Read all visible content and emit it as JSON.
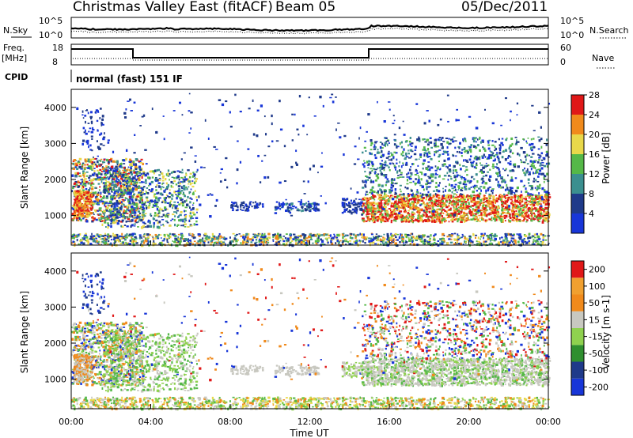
{
  "header": {
    "title": "Christmas Valley East (fitACF)",
    "beam": "Beam 05",
    "date": "05/Dec/2011"
  },
  "top_panel": {
    "nsky_label": "N.Sky",
    "nsearch_label": "N.Search",
    "y_ticks": [
      "10^5",
      "10^0"
    ],
    "freq_label": "Freq.",
    "freq_unit": "[MHz]",
    "freq_ticks": [
      "18",
      "8"
    ],
    "nave_label": "Nave",
    "nave_ticks": [
      "60",
      "0"
    ],
    "cpid_label": "CPID",
    "cpid_text": "normal (fast) 151 IF"
  },
  "colors": {
    "blue": "#1836d8",
    "navy": "#1f3a8a",
    "teal": "#3b8f8f",
    "green": "#55b848",
    "lightgreen": "#8fd14f",
    "yellow": "#e8d84a",
    "orange": "#f08a1c",
    "red": "#e01818",
    "grey": "#c8c8c0"
  },
  "chart_data": [
    {
      "type": "heatmap",
      "title": "",
      "ylabel": "Slant Range [km]",
      "xlabel": "",
      "ylim": [
        180,
        4500
      ],
      "y_ticks": [
        "1000",
        "2000",
        "3000",
        "4000"
      ],
      "colorbar": {
        "label": "Power [dB]",
        "ticks": [
          "4",
          "8",
          "12",
          "16",
          "20",
          "24",
          "28"
        ],
        "colors": [
          "#1836d8",
          "#1f3a8a",
          "#3b8f8f",
          "#55b848",
          "#e8d84a",
          "#f08a1c",
          "#e01818"
        ]
      }
    },
    {
      "type": "heatmap",
      "title": "",
      "ylabel": "Slant Range [km]",
      "xlabel": "Time UT",
      "ylim": [
        180,
        4500
      ],
      "y_ticks": [
        "1000",
        "2000",
        "3000",
        "4000"
      ],
      "x_ticks": [
        "00:00",
        "04:00",
        "08:00",
        "12:00",
        "16:00",
        "20:00",
        "00:00"
      ],
      "colorbar": {
        "label": "Velocity [m s-1]",
        "ticks": [
          "200",
          "100",
          "50",
          "15",
          "-15",
          "-50",
          "-100",
          "-200"
        ],
        "colors": [
          "#1836d8",
          "#1f3a8a",
          "#2f8f2f",
          "#8fd14f",
          "#c8c8c0",
          "#f08a1c",
          "#f0a030",
          "#e01818"
        ]
      }
    }
  ]
}
